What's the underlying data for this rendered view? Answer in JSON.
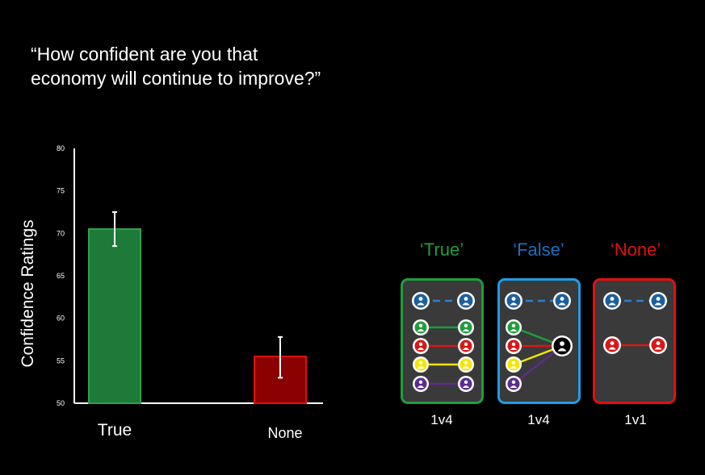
{
  "question": "“How confident are you that economy will continue to improve?”",
  "chart_data": {
    "type": "bar",
    "categories": [
      "True",
      "None"
    ],
    "values": [
      70.5,
      55.5
    ],
    "error_low": [
      68.5,
      53.0
    ],
    "error_high": [
      72.5,
      57.8
    ],
    "bar_colors": [
      "#1e7a38",
      "#8b0000"
    ],
    "bar_edge_colors": [
      "#2fa14b",
      "#e01010"
    ],
    "ylabel": "Confidence Ratings",
    "xlabel": "",
    "ylim": [
      50,
      80
    ],
    "yticks": [
      "50",
      "55",
      "60",
      "65",
      "70",
      "75",
      "80"
    ],
    "grid": false
  },
  "panels": [
    {
      "title": "‘True’",
      "caption": "1v4",
      "title_color": "#1f9e3c",
      "border_color": "#1f9e3c",
      "mode": "true"
    },
    {
      "title": "‘False’",
      "caption": "1v4",
      "title_color": "#1e6fbd",
      "border_color": "#1e9ee8",
      "mode": "false"
    },
    {
      "title": "‘None’",
      "caption": "1v1",
      "title_color": "#e01010",
      "border_color": "#e01010",
      "mode": "none"
    }
  ],
  "person_colors": {
    "blue": "#1b5f9e",
    "green": "#1f9e3c",
    "red": "#d81818",
    "yellow": "#f2e600",
    "purple": "#5b2d8e",
    "black": "#000000"
  }
}
